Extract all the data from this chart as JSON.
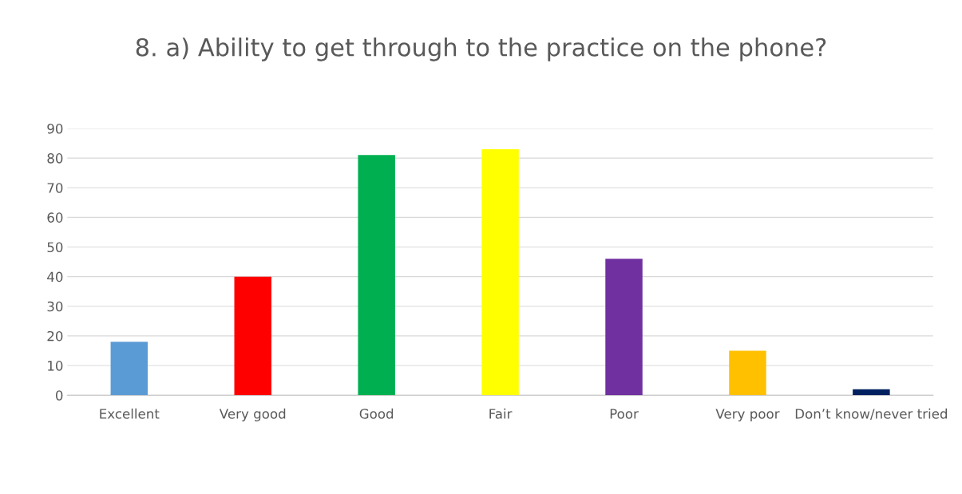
{
  "chart_data": {
    "type": "bar",
    "title": "8. a) Ability to get through to the practice on the phone?",
    "categories": [
      "Excellent",
      "Very good",
      "Good",
      "Fair",
      "Poor",
      "Very poor",
      "Don’t know/never tried"
    ],
    "values": [
      18,
      40,
      81,
      83,
      46,
      15,
      2
    ],
    "colors": [
      "#5b9bd5",
      "#ff0000",
      "#00b050",
      "#ffff00",
      "#7030a0",
      "#ffc000",
      "#002060"
    ],
    "ylim": [
      0,
      90
    ],
    "yticks": [
      0,
      10,
      20,
      30,
      40,
      50,
      60,
      70,
      80,
      90
    ],
    "grid": "y"
  }
}
